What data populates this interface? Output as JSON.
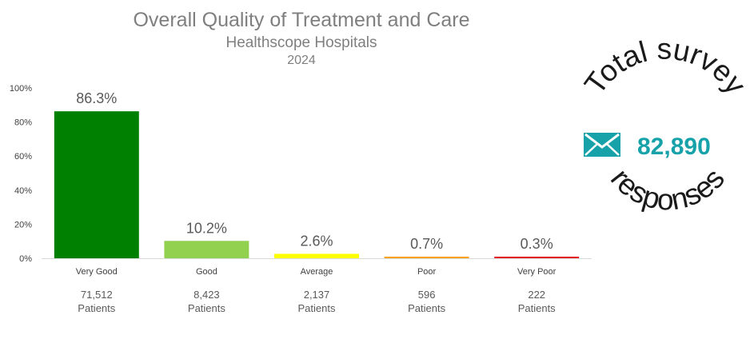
{
  "chart_data": {
    "type": "bar",
    "title": "Overall Quality of Treatment and Care",
    "subtitle": "Healthscope  Hospitals",
    "year": "2024",
    "categories": [
      "Very Good",
      "Good",
      "Average",
      "Poor",
      "Very Poor"
    ],
    "values": [
      86.3,
      10.2,
      2.6,
      0.7,
      0.3
    ],
    "data_labels": [
      "86.3%",
      "10.2%",
      "2.6%",
      "0.7%",
      "0.3%"
    ],
    "patient_counts": [
      "71,512",
      "8,423",
      "2,137",
      "596",
      "222"
    ],
    "patients_label": "Patients",
    "colors": [
      "#008000",
      "#92d050",
      "#ffff00",
      "#f7a21b",
      "#e31b23"
    ],
    "ylim": [
      0,
      100
    ],
    "yticks": [
      0,
      20,
      40,
      60,
      80,
      100
    ],
    "ytick_labels": [
      "0%",
      "20%",
      "40%",
      "60%",
      "80%",
      "100%"
    ],
    "grid": false
  },
  "survey": {
    "top_text": "Total survey",
    "bottom_text": "responses",
    "total": "82,890",
    "icon": "envelope-icon",
    "accent_color": "#17a2aa"
  }
}
